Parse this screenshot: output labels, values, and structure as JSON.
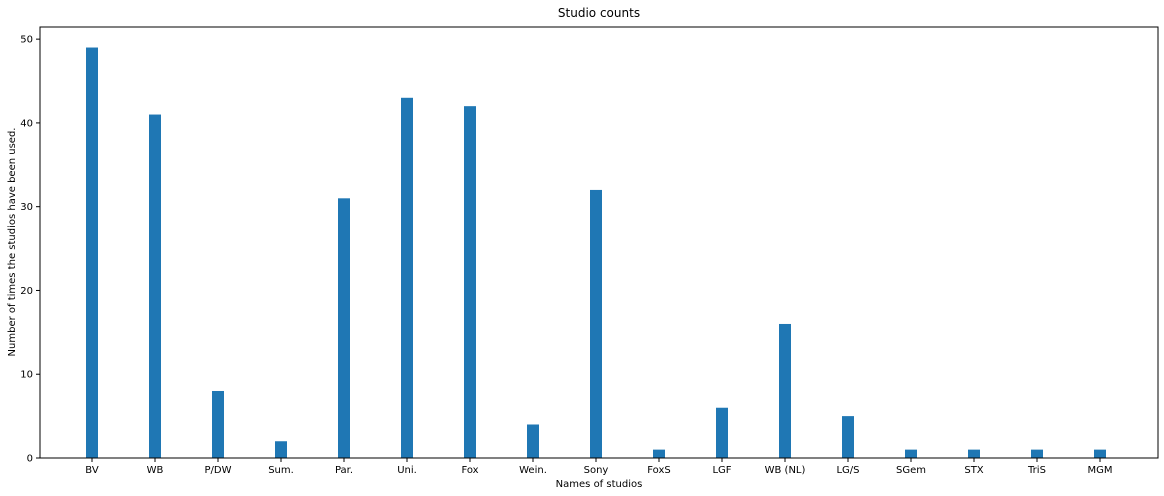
{
  "chart_data": {
    "type": "bar",
    "title": "Studio counts",
    "xlabel": "Names of studios",
    "ylabel": "Number of times the studios have been used.",
    "categories": [
      "BV",
      "WB",
      "P/DW",
      "Sum.",
      "Par.",
      "Uni.",
      "Fox",
      "Wein.",
      "Sony",
      "FoxS",
      "LGF",
      "WB (NL)",
      "LG/S",
      "SGem",
      "STX",
      "TriS",
      "MGM"
    ],
    "values": [
      49,
      41,
      8,
      2,
      31,
      43,
      42,
      4,
      32,
      1,
      6,
      16,
      5,
      1,
      1,
      1,
      1
    ],
    "ylim": [
      0,
      51.45
    ],
    "yticks": [
      0,
      10,
      20,
      30,
      40,
      50
    ],
    "grid": false,
    "bar_color": "#1f77b4"
  }
}
